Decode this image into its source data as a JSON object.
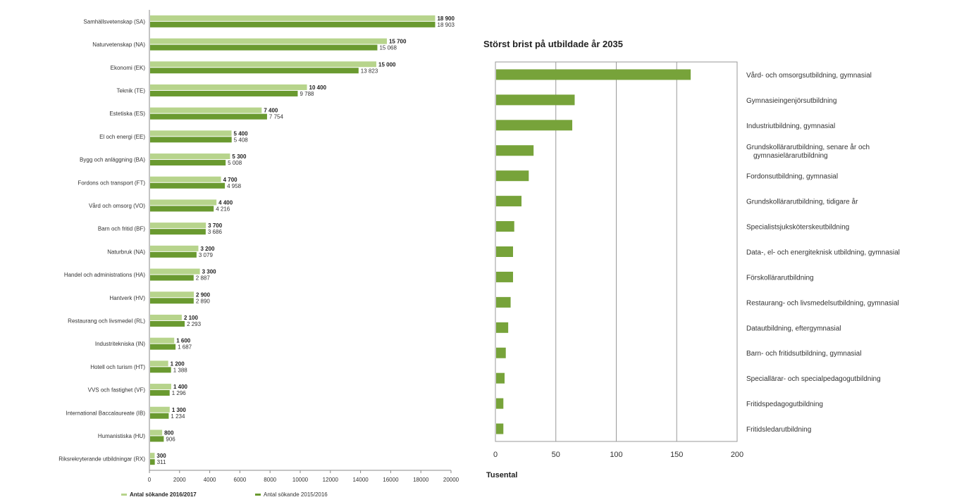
{
  "chart_data": [
    {
      "type": "bar",
      "orientation": "horizontal",
      "title": "",
      "categories": [
        "Samhällsvetenskap (SA)",
        "Naturvetenskap (NA)",
        "Ekonomi (EK)",
        "Teknik (TE)",
        "Estetiska (ES)",
        "El och energi (EE)",
        "Bygg och anläggning (BA)",
        "Fordons och transport (FT)",
        "Vård och omsorg (VO)",
        "Barn och fritid (BF)",
        "Naturbruk (NA)",
        "Handel och administrations (HA)",
        "Hantverk (HV)",
        "Restaurang och livsmedel (RL)",
        "Industritekniska (IN)",
        "Hotell och turism (HT)",
        "VVS och fastighet (VF)",
        "International Baccalaureate (IB)",
        "Humanistiska (HU)",
        "Riksrekryterande utbildningar (RX)"
      ],
      "series": [
        {
          "name": "Antal sökande 2016/2017",
          "color": "#b7d48c",
          "values": [
            18900,
            15700,
            15000,
            10400,
            7400,
            5400,
            5300,
            4700,
            4400,
            3700,
            3200,
            3300,
            2900,
            2100,
            1600,
            1200,
            1400,
            1300,
            800,
            300
          ],
          "labels": [
            "18 900",
            "15 700",
            "15 000",
            "10 400",
            "7 400",
            "5 400",
            "5 300",
            "4 700",
            "4 400",
            "3 700",
            "3 200",
            "3 300",
            "2 900",
            "2 100",
            "1 600",
            "1 200",
            "1 400",
            "1 300",
            "800",
            "300"
          ]
        },
        {
          "name": "Antal sökande 2015/2016",
          "color": "#6a9a30",
          "values": [
            18903,
            15068,
            13823,
            9788,
            7754,
            5408,
            5008,
            4958,
            4216,
            3686,
            3079,
            2887,
            2890,
            2293,
            1687,
            1388,
            1296,
            1234,
            906,
            311
          ],
          "labels": [
            "18 903",
            "15 068",
            "13 823",
            "9 788",
            "7 754",
            "5 408",
            "5 008",
            "4 958",
            "4 216",
            "3 686",
            "3 079",
            "2 887",
            "2 890",
            "2 293",
            "1 687",
            "1 388",
            "1 296",
            "1 234",
            "906",
            "311"
          ]
        }
      ],
      "xlim": [
        0,
        20000
      ],
      "xticks": [
        "0",
        "2000",
        "4000",
        "6000",
        "8000",
        "10000",
        "12000",
        "14000",
        "16000",
        "18000",
        "20000"
      ],
      "legend": "bottom-left",
      "grid": false
    },
    {
      "type": "bar",
      "orientation": "horizontal",
      "title": "Störst brist på utbildade år 2035",
      "xlabel": "Tusental",
      "categories": [
        "Vård- och omsorgsutbildning, gymnasial",
        "Gymnasieingenjörsutbildning",
        "Industriutbildning, gymnasial",
        "Grundskollärarutbildning, senare år och gymnasielärarutbildning",
        "Fordonsutbildning, gymnasial",
        "Grundskollärarutbildning, tidigare år",
        "Specialistsjuksköterskeutbildning",
        "Data-, el- och energiteknisk utbildning, gymnasial",
        "Förskollärarutbildning",
        "Restaurang- och livsmedelsutbildning, gymnasial",
        "Datautbildning, eftergymnasial",
        "Barn- och fritidsutbildning, gymnasial",
        "Speciallärar- och specialpedagogutbildning",
        "Fritidspedagogutbildning",
        "Fritidsledarutbildning"
      ],
      "category_lines": [
        [
          "Vård- och omsorgsutbildning, gymnasial"
        ],
        [
          "Gymnasieingenjörsutbildning"
        ],
        [
          "Industriutbildning, gymnasial"
        ],
        [
          "Grundskollärarutbildning, senare år och",
          "gymnasielärarutbildning"
        ],
        [
          "Fordonsutbildning, gymnasial"
        ],
        [
          "Grundskollärarutbildning, tidigare år"
        ],
        [
          "Specialistsjuksköterskeutbildning"
        ],
        [
          "Data-, el- och energiteknisk utbildning, gymnasial"
        ],
        [
          "Förskollärarutbildning"
        ],
        [
          "Restaurang- och livsmedelsutbildning, gymnasial"
        ],
        [
          "Datautbildning, eftergymnasial"
        ],
        [
          "Barn- och fritidsutbildning, gymnasial"
        ],
        [
          "Speciallärar- och specialpedagogutbildning"
        ],
        [
          "Fritidspedagogutbildning"
        ],
        [
          "Fritidsledarutbildning"
        ]
      ],
      "values": [
        161,
        65,
        63,
        31,
        27,
        21,
        15,
        14,
        14,
        12,
        10,
        8,
        7,
        6,
        6
      ],
      "color": "#77a33a",
      "xlim": [
        0,
        200
      ],
      "xticks": [
        "0",
        "50",
        "100",
        "150",
        "200"
      ],
      "grid": true
    }
  ]
}
